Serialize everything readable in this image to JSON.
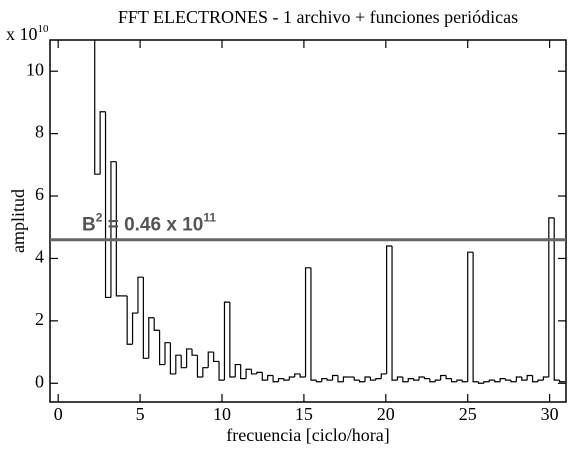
{
  "chart_data": {
    "type": "histogram",
    "title": "FFT ELECTRONES - 1 archivo + funciones periódicas",
    "y_multiplier": {
      "base": "x 10",
      "exponent": "10"
    },
    "x_label": "frecuencia  [ciclo/hora]",
    "y_label": "amplitud",
    "color": "#000000",
    "xlim": [
      -0.5,
      31
    ],
    "xticks": [
      0,
      5,
      10,
      15,
      20,
      25,
      30
    ],
    "ylim": [
      -0.6,
      11
    ],
    "yticks": [
      0,
      2,
      4,
      6,
      8,
      10
    ],
    "reference_line": {
      "value": 4.6,
      "color": "#666666",
      "label_parts": [
        "B",
        "2",
        " = 0.46 x 10",
        "11"
      ]
    },
    "bins": [
      1.9,
      2.23,
      2.56,
      2.89,
      3.22,
      3.55,
      3.88,
      4.21,
      4.54,
      4.87,
      5.2,
      5.53,
      5.86,
      6.19,
      6.52,
      6.85,
      7.18,
      7.51,
      7.84,
      8.17,
      8.5,
      8.83,
      9.16,
      9.49,
      9.82,
      10.15,
      10.48,
      10.81,
      11.14,
      11.47,
      11.8,
      12.13,
      12.46,
      12.79,
      13.12,
      13.45,
      13.78,
      14.11,
      14.44,
      14.77,
      15.1,
      15.43,
      15.76,
      16.09,
      16.42,
      16.75,
      17.08,
      17.41,
      17.74,
      18.07,
      18.4,
      18.73,
      19.06,
      19.39,
      19.72,
      20.05,
      20.38,
      20.71,
      21.04,
      21.37,
      21.7,
      22.03,
      22.36,
      22.69,
      23.02,
      23.35,
      23.68,
      24.01,
      24.34,
      24.67,
      25.0,
      25.33,
      25.66,
      25.99,
      26.32,
      26.65,
      26.98,
      27.31,
      27.64,
      27.97,
      28.3,
      28.63,
      28.96,
      29.29,
      29.62,
      29.95,
      30.28,
      30.61,
      30.94
    ],
    "values": [
      12,
      6.7,
      8.7,
      2.75,
      7.1,
      2.8,
      2.8,
      1.25,
      2.25,
      3.4,
      0.8,
      2.1,
      1.7,
      0.6,
      1.3,
      0.3,
      0.9,
      0.5,
      1.1,
      0.9,
      0.2,
      0.5,
      1.0,
      0.7,
      0.1,
      2.6,
      0.2,
      0.6,
      0.15,
      0.45,
      0.3,
      0.35,
      0.1,
      0.25,
      0.05,
      0.15,
      0.1,
      0.2,
      0.3,
      0.2,
      3.7,
      0.1,
      0.05,
      0.15,
      0.1,
      0.25,
      0.05,
      0.2,
      0.2,
      0.1,
      0.05,
      0.2,
      0.1,
      0.15,
      0.3,
      4.4,
      0.1,
      0.2,
      0.05,
      0.15,
      0.1,
      0.2,
      0.15,
      0.05,
      0.1,
      0.25,
      0.15,
      0.05,
      0.1,
      0.05,
      4.2,
      0.05,
      0.0,
      0.05,
      0.1,
      0.05,
      0.15,
      0.1,
      0.05,
      0.2,
      0.1,
      0.25,
      0.05,
      0.1,
      0.2,
      5.3,
      0.1,
      0.05
    ]
  }
}
